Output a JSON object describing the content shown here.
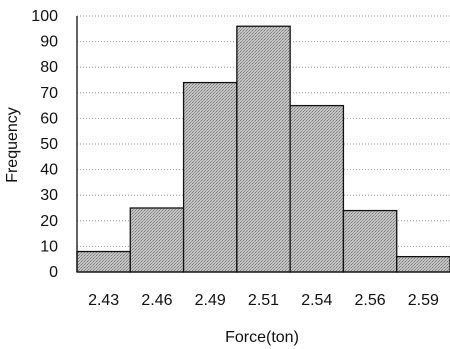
{
  "chart_data": {
    "type": "bar",
    "categories": [
      "2.43",
      "2.46",
      "2.49",
      "2.51",
      "2.54",
      "2.56",
      "2.59"
    ],
    "values": [
      8,
      25,
      74,
      96,
      65,
      24,
      6
    ],
    "xlabel": "Force(ton)",
    "ylabel": "Frequency",
    "ylim": [
      0,
      100
    ],
    "yticks": [
      0,
      10,
      20,
      30,
      40,
      50,
      60,
      70,
      80,
      90,
      100
    ],
    "grid": true,
    "bar_fill": "#bdbdbd",
    "bar_edge": "#111111"
  }
}
